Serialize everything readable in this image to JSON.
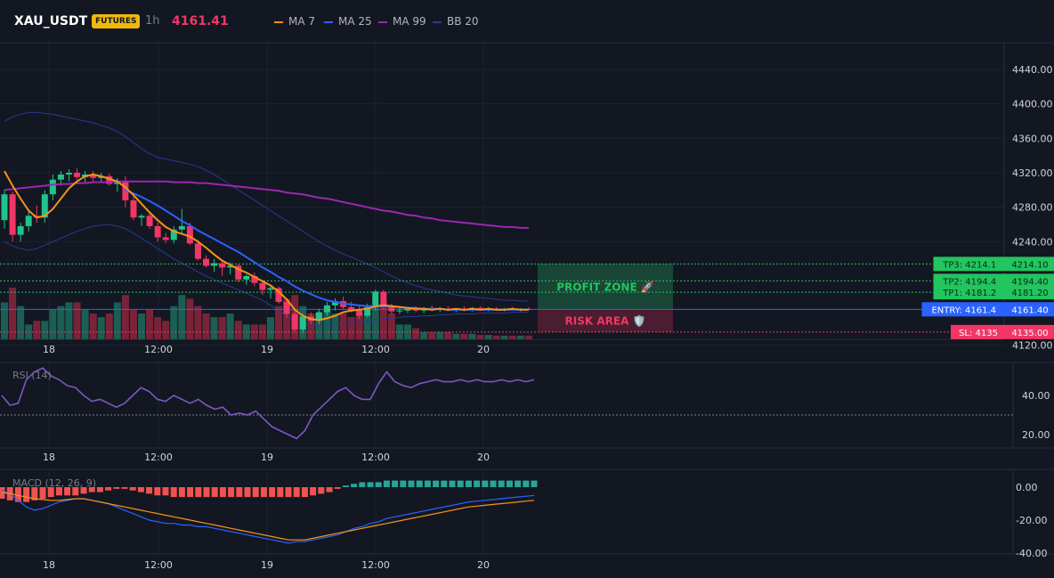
{
  "header": {
    "symbol": "XAU_USDT",
    "badge": "FUTURES",
    "timeframe": "1h",
    "last_price": "4161.41",
    "legend": [
      {
        "label": "MA 7",
        "color": "#f7931a"
      },
      {
        "label": "MA 25",
        "color": "#2962ff"
      },
      {
        "label": "MA 99",
        "color": "#9c27b0"
      },
      {
        "label": "BB 20",
        "color": "#2a3a8f"
      }
    ]
  },
  "colors": {
    "up": "#22c38a",
    "down": "#f23665",
    "vol_up": "#1b5e53",
    "vol_down": "#7a2338",
    "background": "#131722",
    "grid": "#1e2230",
    "entry": "#2962ff",
    "tp": "#22c55e",
    "sl": "#f23665",
    "rsi": "#7e57c2",
    "macd": "#2962ff",
    "signal": "#f7931a",
    "hist_pos": "#26a69a",
    "hist_neg": "#ef5350"
  },
  "time_axis": {
    "labels": [
      "18",
      "12:00",
      "19",
      "12:00",
      "20"
    ]
  },
  "annotations": {
    "profit_zone": "PROFIT ZONE 🚀",
    "risk_area": "RISK AREA 🛡️",
    "levels": [
      {
        "label": "TP3: 4214.1",
        "axis": "4214.10",
        "value": 4214.1,
        "type": "tp"
      },
      {
        "label": "TP2: 4194.4",
        "axis": "4194.40",
        "value": 4194.4,
        "type": "tp"
      },
      {
        "label": "TP1: 4181.2",
        "axis": "4181.20",
        "value": 4181.2,
        "type": "tp"
      },
      {
        "label": "ENTRY: 4161.4",
        "axis": "4161.40",
        "value": 4161.4,
        "type": "entry"
      },
      {
        "label": "SL: 4135",
        "axis": "4135.00",
        "value": 4135,
        "type": "sl"
      }
    ]
  },
  "chart_data": [
    {
      "type": "candlestick",
      "title": "",
      "ylim": [
        4100,
        4460
      ],
      "yticks": [
        4440,
        4400,
        4360,
        4320,
        4280,
        4240,
        4120
      ],
      "grid": true,
      "candles": [
        [
          4265,
          4300,
          4255,
          4295
        ],
        [
          4295,
          4298,
          4240,
          4248
        ],
        [
          4248,
          4262,
          4240,
          4258
        ],
        [
          4258,
          4275,
          4252,
          4270
        ],
        [
          4270,
          4282,
          4262,
          4268
        ],
        [
          4268,
          4300,
          4262,
          4295
        ],
        [
          4295,
          4318,
          4288,
          4312
        ],
        [
          4312,
          4322,
          4305,
          4318
        ],
        [
          4318,
          4324,
          4310,
          4320
        ],
        [
          4320,
          4325,
          4312,
          4315
        ],
        [
          4315,
          4322,
          4308,
          4318
        ],
        [
          4318,
          4322,
          4310,
          4314
        ],
        [
          4314,
          4320,
          4308,
          4316
        ],
        [
          4316,
          4319,
          4305,
          4307
        ],
        [
          4307,
          4314,
          4298,
          4310
        ],
        [
          4310,
          4316,
          4280,
          4288
        ],
        [
          4288,
          4292,
          4265,
          4268
        ],
        [
          4268,
          4272,
          4258,
          4270
        ],
        [
          4270,
          4275,
          4255,
          4258
        ],
        [
          4258,
          4262,
          4240,
          4245
        ],
        [
          4245,
          4250,
          4238,
          4242
        ],
        [
          4242,
          4258,
          4238,
          4254
        ],
        [
          4254,
          4278,
          4250,
          4258
        ],
        [
          4258,
          4262,
          4236,
          4238
        ],
        [
          4238,
          4242,
          4218,
          4220
        ],
        [
          4220,
          4224,
          4210,
          4212
        ],
        [
          4212,
          4220,
          4205,
          4215
        ],
        [
          4215,
          4219,
          4200,
          4210
        ],
        [
          4210,
          4216,
          4202,
          4212
        ],
        [
          4212,
          4214,
          4193,
          4196
        ],
        [
          4196,
          4202,
          4190,
          4200
        ],
        [
          4200,
          4204,
          4188,
          4192
        ],
        [
          4192,
          4196,
          4178,
          4184
        ],
        [
          4184,
          4190,
          4174,
          4186
        ],
        [
          4186,
          4188,
          4168,
          4170
        ],
        [
          4170,
          4172,
          4152,
          4156
        ],
        [
          4156,
          4160,
          4135,
          4138
        ],
        [
          4138,
          4156,
          4134,
          4153
        ],
        [
          4153,
          4158,
          4144,
          4148
        ],
        [
          4148,
          4162,
          4144,
          4158
        ],
        [
          4158,
          4170,
          4154,
          4166
        ],
        [
          4166,
          4174,
          4160,
          4171
        ],
        [
          4171,
          4176,
          4162,
          4164
        ],
        [
          4164,
          4170,
          4158,
          4160
        ],
        [
          4160,
          4166,
          4150,
          4154
        ],
        [
          4154,
          4168,
          4152,
          4164
        ],
        [
          4164,
          4184,
          4160,
          4182
        ],
        [
          4182,
          4184,
          4162,
          4164
        ],
        [
          4164,
          4168,
          4156,
          4159
        ],
        [
          4159,
          4163,
          4156,
          4160
        ],
        [
          4160,
          4164,
          4157,
          4162
        ],
        [
          4162,
          4165,
          4158,
          4160
        ],
        [
          4160,
          4164,
          4157,
          4163
        ],
        [
          4163,
          4166,
          4159,
          4161
        ],
        [
          4161,
          4164,
          4158,
          4162
        ],
        [
          4162,
          4165,
          4159,
          4160
        ],
        [
          4160,
          4163,
          4158,
          4162
        ],
        [
          4162,
          4165,
          4159,
          4161
        ],
        [
          4161,
          4164,
          4159,
          4163
        ],
        [
          4163,
          4165,
          4160,
          4161
        ],
        [
          4161,
          4164,
          4159,
          4162
        ],
        [
          4162,
          4164,
          4160,
          4161
        ],
        [
          4161,
          4163,
          4159,
          4162
        ],
        [
          4162,
          4164,
          4160,
          4161
        ],
        [
          4161,
          4163,
          4159,
          4162
        ],
        [
          4162,
          4164,
          4160,
          4161
        ]
      ],
      "ma7": [
        4322,
        4305,
        4290,
        4276,
        4268,
        4270,
        4278,
        4290,
        4302,
        4310,
        4316,
        4318,
        4316,
        4313,
        4310,
        4303,
        4294,
        4284,
        4274,
        4265,
        4257,
        4252,
        4249,
        4246,
        4240,
        4233,
        4225,
        4218,
        4213,
        4208,
        4204,
        4199,
        4194,
        4189,
        4182,
        4173,
        4161,
        4154,
        4150,
        4149,
        4151,
        4154,
        4158,
        4160,
        4161,
        4162,
        4165,
        4166,
        4165,
        4164,
        4163,
        4162,
        4162,
        4161,
        4162,
        4161,
        4162,
        4161,
        4162,
        4161,
        4162,
        4161,
        4161,
        4162,
        4161,
        4161
      ],
      "ma25": [
        null,
        null,
        null,
        null,
        null,
        null,
        null,
        null,
        null,
        null,
        null,
        null,
        null,
        null,
        null,
        4300,
        4296,
        4292,
        4287,
        4282,
        4276,
        4270,
        4264,
        4259,
        4253,
        4248,
        4243,
        4238,
        4233,
        4228,
        4222,
        4216,
        4210,
        4205,
        4199,
        4194,
        4188,
        4183,
        4179,
        4175,
        4172,
        4170,
        4168,
        4167,
        4166,
        4165,
        4165,
        4165,
        4164,
        4164,
        4163,
        4163,
        4162,
        4162,
        4162,
        4161,
        4161,
        4161,
        4161,
        4161,
        4161,
        4161,
        4161,
        4161,
        4161,
        4161
      ],
      "ma99": [
        4300,
        4301,
        4302,
        4303,
        4304,
        4305,
        4306,
        4307,
        4307,
        4308,
        4308,
        4309,
        4309,
        4309,
        4310,
        4310,
        4310,
        4310,
        4310,
        4310,
        4310,
        4309,
        4309,
        4309,
        4308,
        4308,
        4307,
        4306,
        4305,
        4304,
        4303,
        4302,
        4301,
        4300,
        4299,
        4297,
        4296,
        4295,
        4293,
        4291,
        4290,
        4288,
        4286,
        4284,
        4282,
        4280,
        4278,
        4276,
        4275,
        4273,
        4271,
        4270,
        4268,
        4267,
        4265,
        4264,
        4263,
        4262,
        4261,
        4260,
        4259,
        4258,
        4257,
        4257,
        4256,
        4256
      ],
      "bb_upper": [
        4380,
        4385,
        4388,
        4390,
        4390,
        4389,
        4388,
        4386,
        4384,
        4382,
        4380,
        4378,
        4375,
        4372,
        4368,
        4362,
        4355,
        4348,
        4342,
        4338,
        4336,
        4334,
        4332,
        4330,
        4327,
        4323,
        4318,
        4312,
        4306,
        4300,
        4294,
        4288,
        4282,
        4276,
        4270,
        4264,
        4258,
        4252,
        4246,
        4240,
        4235,
        4230,
        4226,
        4222,
        4218,
        4214,
        4210,
        4205,
        4200,
        4196,
        4192,
        4189,
        4186,
        4184,
        4182,
        4180,
        4178,
        4177,
        4176,
        4175,
        4174,
        4173,
        4172,
        4172,
        4171,
        4171
      ],
      "bb_lower": [
        4240,
        4235,
        4232,
        4230,
        4232,
        4236,
        4240,
        4244,
        4248,
        4252,
        4255,
        4258,
        4259,
        4260,
        4258,
        4255,
        4250,
        4244,
        4238,
        4232,
        4226,
        4220,
        4215,
        4210,
        4205,
        4200,
        4196,
        4192,
        4188,
        4184,
        4180,
        4176,
        4172,
        4166,
        4160,
        4154,
        4148,
        4145,
        4144,
        4143,
        4143,
        4144,
        4145,
        4146,
        4147,
        4148,
        4149,
        4150,
        4151,
        4152,
        4153,
        4153,
        4154,
        4154,
        4155,
        4155,
        4156,
        4156,
        4156,
        4157,
        4157,
        4157,
        4157,
        4158,
        4158,
        4158
      ],
      "volume": [
        10,
        14,
        9,
        4,
        5,
        5,
        8,
        9,
        10,
        10,
        8,
        7,
        6,
        7,
        10,
        12,
        8,
        7,
        8,
        6,
        5,
        9,
        12,
        11,
        9,
        7,
        6,
        6,
        7,
        5,
        4,
        4,
        4,
        6,
        9,
        11,
        12,
        9,
        7,
        7,
        8,
        7,
        7,
        6,
        7,
        7,
        9,
        10,
        7,
        4,
        4,
        3,
        2,
        2,
        2,
        2,
        1.5,
        1.5,
        1.5,
        1.2,
        1.2,
        1,
        1,
        1,
        1,
        1
      ]
    },
    {
      "type": "line",
      "title": "RSI (14)",
      "ylim": [
        10,
        60
      ],
      "yticks": [
        40,
        20
      ],
      "reference_line": 30,
      "series": [
        {
          "values": [
            40,
            35,
            36,
            48,
            52,
            54,
            50,
            48,
            45,
            44,
            40,
            37,
            38,
            36,
            34,
            36,
            40,
            44,
            42,
            38,
            37,
            40,
            38,
            36,
            38,
            35,
            33,
            34,
            30,
            31,
            30,
            32,
            28,
            24,
            22,
            20,
            18,
            22,
            30,
            34,
            38,
            42,
            44,
            40,
            38,
            38,
            46,
            52,
            47,
            45,
            44,
            46,
            47,
            48,
            47,
            47,
            48,
            47,
            48,
            47,
            47,
            48,
            47,
            48,
            47,
            48
          ]
        }
      ]
    },
    {
      "type": "bar",
      "title": "MACD (12, 26, 9)",
      "ylim": [
        -40,
        8
      ],
      "yticks": [
        0,
        -20,
        -40
      ],
      "histogram": [
        -7,
        -8,
        -9,
        -9,
        -8,
        -7,
        -6,
        -5,
        -5,
        -5,
        -4,
        -3,
        -3,
        -2,
        -1,
        -1,
        -2,
        -3,
        -4,
        -5,
        -5,
        -6,
        -6,
        -6,
        -6,
        -6,
        -6,
        -6,
        -6,
        -6,
        -6,
        -6,
        -6,
        -6,
        -6,
        -6,
        -6,
        -6,
        -5,
        -4,
        -3,
        -1,
        1,
        2,
        3,
        3,
        3,
        4,
        4,
        4,
        4,
        4,
        4,
        4,
        4,
        4,
        4,
        4,
        4,
        4,
        4,
        4,
        4,
        4,
        4,
        4
      ],
      "series": [
        {
          "values": [
            -2,
            -4,
            -8,
            -12,
            -14,
            -13,
            -11,
            -9,
            -8,
            -7,
            -7,
            -8,
            -9,
            -10,
            -12,
            -14,
            -16,
            -18,
            -20,
            -21,
            -22,
            -22,
            -23,
            -23,
            -24,
            -24,
            -25,
            -26,
            -27,
            -28,
            -29,
            -30,
            -31,
            -32,
            -33,
            -34,
            -33,
            -33,
            -32,
            -31,
            -30,
            -29,
            -27,
            -25,
            -24,
            -22,
            -21,
            -19,
            -18,
            -17,
            -16,
            -15,
            -14,
            -13,
            -12,
            -11,
            -10,
            -9,
            -8.5,
            -8,
            -7.5,
            -7,
            -6.5,
            -6,
            -5.5,
            -5
          ]
        },
        {
          "values": [
            -3,
            -4,
            -5,
            -6,
            -7,
            -7.5,
            -8,
            -8,
            -7.5,
            -7,
            -7,
            -8,
            -9,
            -10,
            -11,
            -12,
            -13,
            -14,
            -15,
            -16,
            -17,
            -18,
            -19,
            -20,
            -21,
            -22,
            -23,
            -24,
            -25,
            -26,
            -27,
            -28,
            -29,
            -30,
            -31,
            -32,
            -32,
            -32,
            -31,
            -30,
            -29,
            -28,
            -27,
            -26,
            -25,
            -24,
            -23,
            -22,
            -21,
            -20,
            -19,
            -18,
            -17,
            -16,
            -15,
            -14,
            -13,
            -12,
            -11.5,
            -11,
            -10.5,
            -10,
            -9.5,
            -9,
            -8.5,
            -8
          ]
        }
      ]
    }
  ]
}
